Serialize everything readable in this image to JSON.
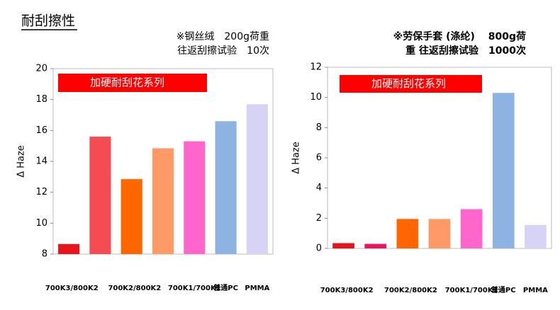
{
  "title": "耐刮擦性",
  "chart_data": [
    {
      "type": "bar",
      "title": [
        "※钢丝绒　200g荷重",
        "往返刮擦试验　10次"
      ],
      "annotation": "加硬耐刮花系列",
      "y_label": "Δ Haze",
      "categories": [
        "700K3/800K2",
        null,
        "700K2/800K2",
        null,
        "700K1/700K1",
        "普通PC",
        "PMMA"
      ],
      "values": [
        8.65,
        15.6,
        12.85,
        14.85,
        15.3,
        16.6,
        17.7
      ],
      "colors": [
        "#e8141c",
        "#f44c50",
        "#ff6600",
        "#ff9966",
        "#ff66cc",
        "#8db3e2",
        "#d6d3f5"
      ],
      "ylim": [
        8,
        20
      ],
      "yticks": [
        8,
        10,
        12,
        14,
        16,
        18,
        20
      ]
    },
    {
      "type": "bar",
      "title": [
        "※劳保手套 (涤纶)　 800g荷",
        "重 往返刮擦试验　1000次"
      ],
      "annotation": "加硬耐刮花系列",
      "y_label": "Δ Haze",
      "categories": [
        "700K3/800K2",
        null,
        "700K2/800K2",
        null,
        "700K1/700K1",
        "普通PC",
        "PMMA"
      ],
      "values": [
        0.35,
        0.3,
        1.95,
        1.95,
        2.6,
        10.3,
        1.55
      ],
      "colors": [
        "#e8141c",
        "#f0105c",
        "#ff6600",
        "#ff9966",
        "#ff66cc",
        "#8db3e2",
        "#d6d3f5"
      ],
      "ylim": [
        0,
        12
      ],
      "yticks": [
        0,
        2,
        4,
        6,
        8,
        10,
        12
      ]
    }
  ]
}
